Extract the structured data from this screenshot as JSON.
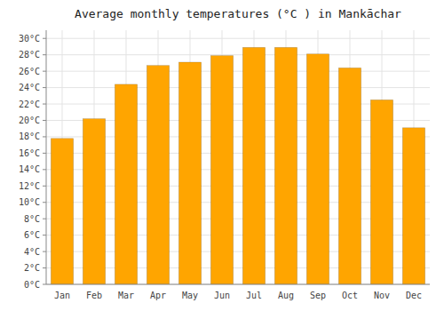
{
  "chart_data": {
    "type": "bar",
    "title": "Average monthly temperatures (°C ) in Mankāchar",
    "categories": [
      "Jan",
      "Feb",
      "Mar",
      "Apr",
      "May",
      "Jun",
      "Jul",
      "Aug",
      "Sep",
      "Oct",
      "Nov",
      "Dec"
    ],
    "values": [
      17.8,
      20.2,
      24.4,
      26.7,
      27.1,
      27.9,
      28.9,
      28.9,
      28.1,
      26.4,
      22.5,
      19.1
    ],
    "color": "#FFA500",
    "ylim": [
      0,
      31
    ],
    "yticks": [
      {
        "value": 0,
        "label": "0°C"
      },
      {
        "value": 2,
        "label": "2°C"
      },
      {
        "value": 4,
        "label": "4°C"
      },
      {
        "value": 6,
        "label": "6°C"
      },
      {
        "value": 8,
        "label": "8°C"
      },
      {
        "value": 10,
        "label": "10°C"
      },
      {
        "value": 12,
        "label": "12°C"
      },
      {
        "value": 14,
        "label": "14°C"
      },
      {
        "value": 16,
        "label": "16°C"
      },
      {
        "value": 18,
        "label": "18°C"
      },
      {
        "value": 20,
        "label": "20°C"
      },
      {
        "value": 22,
        "label": "22°C"
      },
      {
        "value": 24,
        "label": "24°C"
      },
      {
        "value": 26,
        "label": "26°C"
      },
      {
        "value": 28,
        "label": "28°C"
      },
      {
        "value": 30,
        "label": "30°C"
      }
    ],
    "grid": true
  }
}
